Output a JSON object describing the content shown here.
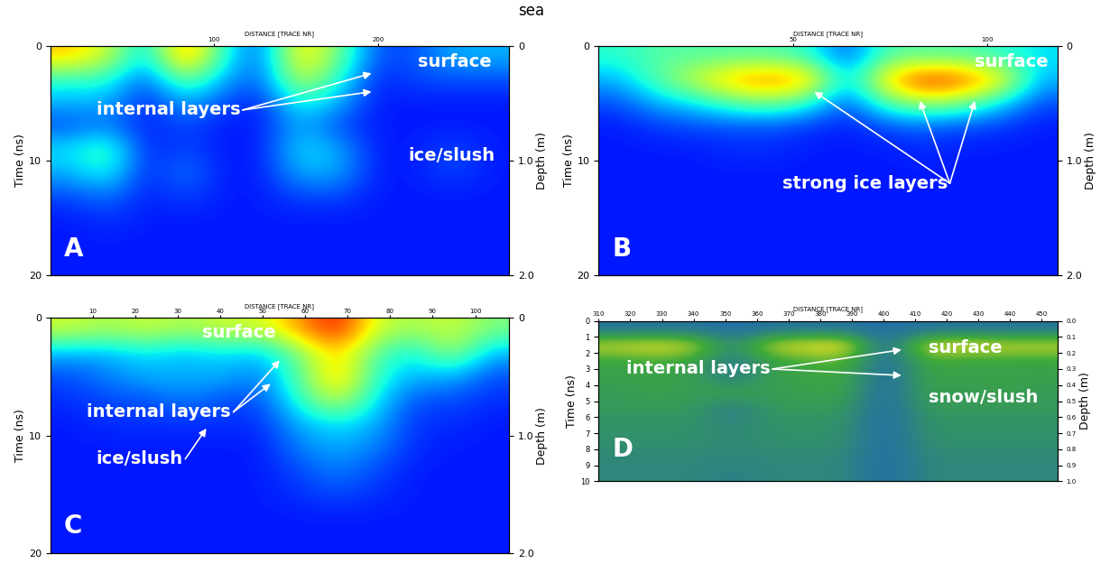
{
  "title": "sea",
  "chart_data": [
    {
      "type": "heatmap",
      "label": "A",
      "annotations": [
        "surface",
        "internal layers",
        "ice/slush"
      ],
      "x_label": "DISTANCE [TRACE NR]",
      "y_label": "Time (ns)",
      "y2_label": "Depth (m)",
      "xlim": [
        0,
        280
      ],
      "xticks": [
        100,
        200
      ],
      "ylim": [
        0,
        20
      ],
      "yticks": [
        0,
        10,
        20
      ],
      "y2lim": [
        0,
        2.0
      ],
      "y2ticks": [
        0,
        1.0,
        2.0
      ],
      "color_range": [
        0,
        1
      ],
      "cells": [
        [
          0.7,
          0.6,
          0.3,
          0.8,
          0.4,
          0.2,
          0.7,
          0.5,
          0.2,
          0.2,
          0.3,
          0.3
        ],
        [
          0.4,
          0.4,
          0.2,
          0.5,
          0.3,
          0.2,
          0.6,
          0.4,
          0.15,
          0.2,
          0.2,
          0.2
        ],
        [
          0.3,
          0.3,
          0.15,
          0.3,
          0.2,
          0.15,
          0.4,
          0.3,
          0.15,
          0.15,
          0.15,
          0.15
        ],
        [
          0.2,
          0.25,
          0.15,
          0.2,
          0.15,
          0.15,
          0.3,
          0.2,
          0.15,
          0.15,
          0.15,
          0.15
        ],
        [
          0.35,
          0.45,
          0.15,
          0.2,
          0.15,
          0.15,
          0.35,
          0.3,
          0.15,
          0.15,
          0.2,
          0.15
        ],
        [
          0.3,
          0.4,
          0.15,
          0.25,
          0.15,
          0.15,
          0.3,
          0.3,
          0.15,
          0.15,
          0.2,
          0.15
        ],
        [
          0.2,
          0.25,
          0.15,
          0.2,
          0.15,
          0.15,
          0.2,
          0.2,
          0.15,
          0.15,
          0.15,
          0.15
        ],
        [
          0.15,
          0.18,
          0.15,
          0.15,
          0.15,
          0.15,
          0.15,
          0.15,
          0.15,
          0.15,
          0.15,
          0.15
        ],
        [
          0.15,
          0.15,
          0.15,
          0.15,
          0.15,
          0.15,
          0.15,
          0.15,
          0.15,
          0.15,
          0.15,
          0.15
        ],
        [
          0.15,
          0.15,
          0.15,
          0.15,
          0.15,
          0.15,
          0.15,
          0.15,
          0.15,
          0.15,
          0.15,
          0.15
        ]
      ]
    },
    {
      "type": "heatmap",
      "label": "B",
      "annotations": [
        "surface",
        "strong ice layers"
      ],
      "x_label": "DISTANCE [TRACE NR]",
      "y_label": "Time (ns)",
      "y2_label": "Depth (m)",
      "xlim": [
        0,
        118
      ],
      "xticks": [
        50,
        100
      ],
      "ylim": [
        0,
        20
      ],
      "yticks": [
        0,
        10,
        20
      ],
      "y2lim": [
        0,
        2.0
      ],
      "y2ticks": [
        0,
        1.0,
        2.0
      ],
      "color_range": [
        0,
        1
      ],
      "cells": [
        [
          0.4,
          0.45,
          0.45,
          0.45,
          0.45,
          0.4,
          0.2,
          0.45,
          0.45,
          0.45,
          0.4,
          0.35
        ],
        [
          0.3,
          0.45,
          0.6,
          0.75,
          0.8,
          0.75,
          0.3,
          0.7,
          0.9,
          0.85,
          0.7,
          0.3
        ],
        [
          0.2,
          0.3,
          0.35,
          0.45,
          0.5,
          0.4,
          0.2,
          0.45,
          0.55,
          0.5,
          0.35,
          0.2
        ],
        [
          0.15,
          0.18,
          0.2,
          0.2,
          0.2,
          0.18,
          0.15,
          0.2,
          0.22,
          0.2,
          0.18,
          0.15
        ],
        [
          0.15,
          0.15,
          0.15,
          0.17,
          0.17,
          0.15,
          0.15,
          0.15,
          0.17,
          0.15,
          0.15,
          0.15
        ],
        [
          0.15,
          0.15,
          0.15,
          0.15,
          0.15,
          0.15,
          0.15,
          0.15,
          0.15,
          0.15,
          0.15,
          0.15
        ],
        [
          0.15,
          0.15,
          0.15,
          0.15,
          0.15,
          0.15,
          0.15,
          0.15,
          0.15,
          0.15,
          0.15,
          0.15
        ],
        [
          0.15,
          0.15,
          0.15,
          0.15,
          0.15,
          0.15,
          0.15,
          0.15,
          0.15,
          0.15,
          0.15,
          0.15
        ],
        [
          0.15,
          0.15,
          0.15,
          0.15,
          0.15,
          0.15,
          0.15,
          0.15,
          0.15,
          0.15,
          0.15,
          0.15
        ],
        [
          0.15,
          0.15,
          0.15,
          0.15,
          0.15,
          0.15,
          0.15,
          0.15,
          0.15,
          0.15,
          0.15,
          0.15
        ]
      ]
    },
    {
      "type": "heatmap",
      "label": "C",
      "annotations": [
        "surface",
        "internal layers",
        "ice/slush"
      ],
      "x_label": "DISTANCE [TRACE NR]",
      "y_label": "Time (ns)",
      "y2_label": "Depth (m)",
      "xlim": [
        0,
        108
      ],
      "xticks": [
        10,
        20,
        30,
        40,
        50,
        60,
        70,
        80,
        90,
        100
      ],
      "ylim": [
        0,
        20
      ],
      "yticks": [
        0,
        10,
        20
      ],
      "y2lim": [
        0,
        2.0
      ],
      "y2ticks": [
        0,
        1.0,
        2.0
      ],
      "color_range": [
        0,
        1
      ],
      "cells": [
        [
          0.6,
          0.55,
          0.6,
          0.55,
          0.6,
          0.6,
          0.75,
          0.9,
          0.6,
          0.55,
          0.6,
          0.5
        ],
        [
          0.3,
          0.3,
          0.35,
          0.3,
          0.35,
          0.3,
          0.5,
          0.7,
          0.45,
          0.35,
          0.55,
          0.3
        ],
        [
          0.2,
          0.25,
          0.3,
          0.3,
          0.3,
          0.25,
          0.45,
          0.75,
          0.4,
          0.3,
          0.3,
          0.2
        ],
        [
          0.17,
          0.2,
          0.2,
          0.25,
          0.2,
          0.2,
          0.4,
          0.6,
          0.35,
          0.2,
          0.2,
          0.17
        ],
        [
          0.15,
          0.17,
          0.17,
          0.17,
          0.17,
          0.17,
          0.3,
          0.35,
          0.3,
          0.17,
          0.17,
          0.15
        ],
        [
          0.15,
          0.15,
          0.15,
          0.15,
          0.15,
          0.15,
          0.25,
          0.3,
          0.25,
          0.17,
          0.15,
          0.15
        ],
        [
          0.15,
          0.15,
          0.15,
          0.15,
          0.15,
          0.15,
          0.2,
          0.25,
          0.2,
          0.15,
          0.15,
          0.15
        ],
        [
          0.15,
          0.15,
          0.15,
          0.15,
          0.15,
          0.15,
          0.17,
          0.2,
          0.17,
          0.15,
          0.15,
          0.15
        ],
        [
          0.15,
          0.15,
          0.15,
          0.15,
          0.15,
          0.15,
          0.15,
          0.15,
          0.15,
          0.15,
          0.15,
          0.15
        ],
        [
          0.15,
          0.15,
          0.15,
          0.15,
          0.15,
          0.15,
          0.15,
          0.15,
          0.15,
          0.15,
          0.15,
          0.15
        ]
      ]
    },
    {
      "type": "heatmap",
      "label": "D",
      "annotations": [
        "surface",
        "internal layers",
        "snow/slush"
      ],
      "x_label": "DISTANCE [TRACE NR]",
      "y_label": "Time (ns)",
      "y2_label": "Depth (m)",
      "xlim": [
        310,
        455
      ],
      "xticks": [
        310,
        320,
        330,
        340,
        350,
        360,
        370,
        380,
        390,
        400,
        410,
        420,
        430,
        440,
        450
      ],
      "ylim": [
        0,
        10
      ],
      "yticks": [
        0,
        1,
        2,
        3,
        4,
        5,
        6,
        7,
        8,
        9,
        10
      ],
      "y2lim": [
        0,
        1.0
      ],
      "y2ticks": [
        0.0,
        0.1,
        0.2,
        0.3,
        0.4,
        0.5,
        0.6,
        0.7,
        0.8,
        0.9,
        1.0
      ],
      "color_range": [
        0,
        1
      ],
      "cells": [
        [
          0.15,
          0.15,
          0.15,
          0.1,
          0.15,
          0.15,
          0.15,
          0.1,
          0.15,
          0.15,
          0.15,
          0.15
        ],
        [
          0.75,
          0.8,
          0.75,
          0.3,
          0.75,
          0.8,
          0.85,
          0.1,
          0.75,
          0.8,
          0.75,
          0.75
        ],
        [
          0.45,
          0.5,
          0.45,
          0.2,
          0.45,
          0.5,
          0.55,
          0.1,
          0.5,
          0.45,
          0.45,
          0.45
        ],
        [
          0.45,
          0.45,
          0.45,
          0.2,
          0.45,
          0.45,
          0.5,
          0.1,
          0.45,
          0.45,
          0.45,
          0.45
        ],
        [
          0.4,
          0.45,
          0.4,
          0.5,
          0.4,
          0.45,
          0.45,
          0.1,
          0.45,
          0.4,
          0.45,
          0.4
        ],
        [
          0.4,
          0.4,
          0.4,
          0.2,
          0.4,
          0.4,
          0.4,
          0.1,
          0.4,
          0.4,
          0.4,
          0.4
        ],
        [
          0.35,
          0.35,
          0.35,
          0.3,
          0.35,
          0.35,
          0.35,
          0.1,
          0.35,
          0.35,
          0.35,
          0.35
        ],
        [
          0.35,
          0.35,
          0.35,
          0.3,
          0.35,
          0.35,
          0.35,
          0.1,
          0.35,
          0.35,
          0.35,
          0.35
        ],
        [
          0.3,
          0.3,
          0.3,
          0.3,
          0.3,
          0.3,
          0.3,
          0.1,
          0.3,
          0.3,
          0.3,
          0.3
        ],
        [
          0.3,
          0.3,
          0.3,
          0.25,
          0.3,
          0.3,
          0.3,
          0.1,
          0.3,
          0.3,
          0.3,
          0.3
        ]
      ]
    }
  ]
}
